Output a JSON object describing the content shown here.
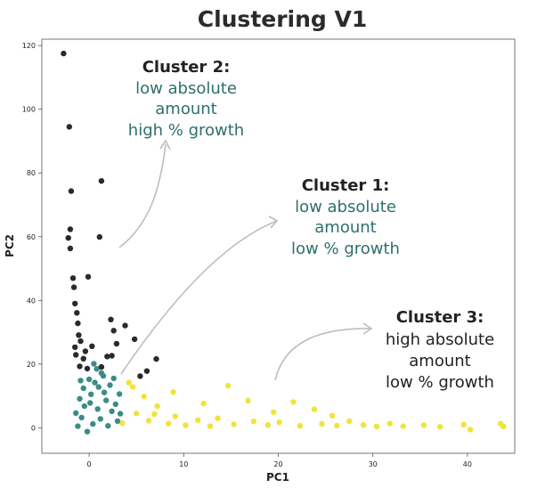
{
  "chart_data": {
    "type": "scatter",
    "title": "Clustering V1",
    "xlabel": "PC1",
    "ylabel": "PC2",
    "xlim": [
      -5,
      45
    ],
    "ylim": [
      -8,
      122
    ],
    "xticks": [
      "0",
      "10",
      "20",
      "30",
      "40"
    ],
    "yticks": [
      "0",
      "20",
      "40",
      "60",
      "80",
      "100",
      "120"
    ],
    "xtick_values": [
      0,
      10,
      20,
      30,
      40
    ],
    "ytick_values": [
      0,
      20,
      40,
      60,
      80,
      100,
      120
    ],
    "grid": false,
    "legend": "none",
    "colors": {
      "cluster1": "#3b8c87",
      "cluster2": "#2a2a2a",
      "cluster3": "#f1e33a",
      "arrow": "#bdbdbd"
    },
    "series": [
      {
        "cluster": 1,
        "color_key": "cluster1",
        "points": [
          [
            -1.2,
            0.5
          ],
          [
            -0.8,
            3.2
          ],
          [
            -0.5,
            6.8
          ],
          [
            0.2,
            10.5
          ],
          [
            0.6,
            14.2
          ],
          [
            1.0,
            12.8
          ],
          [
            1.8,
            8.6
          ],
          [
            2.4,
            5.2
          ],
          [
            3.0,
            2.1
          ],
          [
            2.8,
            7.4
          ],
          [
            1.5,
            16.3
          ],
          [
            0.8,
            18.5
          ],
          [
            0.0,
            15.2
          ],
          [
            -0.6,
            12.4
          ],
          [
            -1.0,
            9.1
          ],
          [
            -1.4,
            4.6
          ],
          [
            0.4,
            1.2
          ],
          [
            1.2,
            2.8
          ],
          [
            2.0,
            0.6
          ],
          [
            -0.2,
            -1.2
          ],
          [
            0.9,
            5.9
          ],
          [
            1.6,
            11.1
          ],
          [
            2.2,
            13.4
          ],
          [
            3.2,
            10.6
          ],
          [
            2.6,
            15.5
          ],
          [
            0.1,
            7.8
          ],
          [
            -0.9,
            14.8
          ],
          [
            1.3,
            17.2
          ],
          [
            0.5,
            20.1
          ],
          [
            3.3,
            4.4
          ]
        ]
      },
      {
        "cluster": 2,
        "color_key": "cluster2",
        "points": [
          [
            -2.7,
            117.5
          ],
          [
            -2.1,
            94.5
          ],
          [
            -1.9,
            74.3
          ],
          [
            1.3,
            77.5
          ],
          [
            -2.0,
            62.3
          ],
          [
            -2.2,
            59.6
          ],
          [
            1.1,
            59.9
          ],
          [
            -2.0,
            56.3
          ],
          [
            -1.7,
            47.0
          ],
          [
            -0.1,
            47.4
          ],
          [
            -1.6,
            44.1
          ],
          [
            -1.5,
            39.0
          ],
          [
            -1.3,
            36.1
          ],
          [
            2.3,
            34.0
          ],
          [
            3.8,
            32.1
          ],
          [
            -1.2,
            32.8
          ],
          [
            -1.1,
            29.1
          ],
          [
            2.6,
            30.5
          ],
          [
            -0.9,
            27.2
          ],
          [
            -1.5,
            25.3
          ],
          [
            2.9,
            26.4
          ],
          [
            4.8,
            27.8
          ],
          [
            -0.4,
            24.0
          ],
          [
            0.3,
            25.6
          ],
          [
            -0.6,
            21.7
          ],
          [
            1.9,
            22.4
          ],
          [
            2.4,
            22.6
          ],
          [
            7.1,
            21.6
          ],
          [
            -1.0,
            19.3
          ],
          [
            -0.2,
            18.6
          ],
          [
            1.3,
            19.1
          ],
          [
            5.4,
            16.2
          ],
          [
            6.1,
            17.8
          ],
          [
            -1.4,
            22.9
          ]
        ]
      },
      {
        "cluster": 3,
        "color_key": "cluster3",
        "points": [
          [
            3.5,
            1.5
          ],
          [
            4.2,
            14.2
          ],
          [
            5.0,
            4.5
          ],
          [
            6.3,
            2.2
          ],
          [
            7.2,
            6.8
          ],
          [
            8.4,
            1.3
          ],
          [
            9.1,
            3.6
          ],
          [
            10.2,
            0.8
          ],
          [
            11.5,
            2.4
          ],
          [
            12.8,
            0.5
          ],
          [
            13.6,
            3.0
          ],
          [
            14.7,
            13.2
          ],
          [
            15.3,
            1.1
          ],
          [
            16.8,
            8.5
          ],
          [
            17.4,
            2.0
          ],
          [
            18.9,
            0.9
          ],
          [
            20.1,
            1.7
          ],
          [
            21.6,
            8.1
          ],
          [
            22.3,
            0.6
          ],
          [
            23.8,
            5.8
          ],
          [
            24.6,
            1.2
          ],
          [
            26.2,
            0.7
          ],
          [
            27.5,
            2.1
          ],
          [
            29.0,
            0.9
          ],
          [
            30.4,
            0.4
          ],
          [
            31.8,
            1.3
          ],
          [
            33.2,
            0.5
          ],
          [
            35.4,
            0.8
          ],
          [
            37.1,
            0.3
          ],
          [
            39.6,
            1.0
          ],
          [
            40.3,
            -0.6
          ],
          [
            43.5,
            1.3
          ],
          [
            43.8,
            0.4
          ],
          [
            5.8,
            9.8
          ],
          [
            8.9,
            11.2
          ],
          [
            12.1,
            7.6
          ],
          [
            4.6,
            12.8
          ],
          [
            6.9,
            4.3
          ],
          [
            19.5,
            4.9
          ],
          [
            25.7,
            3.8
          ]
        ]
      }
    ],
    "annotations": [
      {
        "id": "cluster2",
        "head": "Cluster 2:",
        "lines": [
          "low absolute",
          "amount",
          "high % growth"
        ]
      },
      {
        "id": "cluster1",
        "head": "Cluster 1:",
        "lines": [
          "low absolute",
          "amount",
          "low  % growth"
        ]
      },
      {
        "id": "cluster3",
        "head": "Cluster 3:",
        "lines": [
          "high absolute",
          "amount",
          "low  % growth"
        ]
      }
    ]
  }
}
